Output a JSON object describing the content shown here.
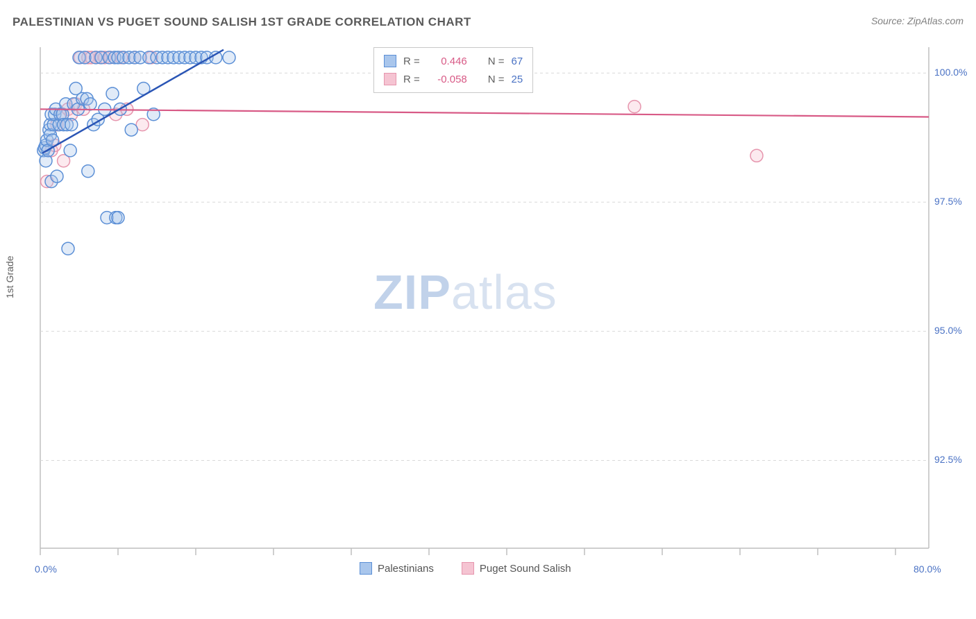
{
  "title": "PALESTINIAN VS PUGET SOUND SALISH 1ST GRADE CORRELATION CHART",
  "source": "Source: ZipAtlas.com",
  "watermark": {
    "front": "ZIP",
    "back": "atlas"
  },
  "ylabel": "1st Grade",
  "chart": {
    "type": "scatter",
    "xlim": [
      0,
      80
    ],
    "ylim": [
      90.8,
      100.5
    ],
    "x_tick_labels": {
      "0": "0.0%",
      "80": "80.0%"
    },
    "x_minor_ticks": [
      0,
      7,
      14,
      21,
      28,
      35,
      42,
      49,
      56,
      63,
      70,
      77
    ],
    "y_ticks": [
      92.5,
      95.0,
      97.5,
      100.0
    ],
    "y_tick_labels": {
      "92.5": "92.5%",
      "95.0": "95.0%",
      "97.5": "97.5%",
      "100.0": "100.0%"
    },
    "grid_color": "#d9d9d9",
    "axis_color": "#bfbfbf",
    "background_color": "#ffffff",
    "marker_radius": 9,
    "marker_stroke_width": 1.5,
    "marker_fill_opacity": 0.35,
    "series_a": {
      "label": "Palestinians",
      "color_stroke": "#5b8fd6",
      "color_fill": "#a9c6ec",
      "r_value": "0.446",
      "n_value": "67",
      "trend": {
        "x1": 0.2,
        "y1": 98.45,
        "x2": 16.5,
        "y2": 100.45,
        "width": 2.5,
        "color": "#2a55b5"
      },
      "points": [
        [
          0.3,
          98.5
        ],
        [
          0.4,
          98.55
        ],
        [
          0.5,
          98.6
        ],
        [
          0.5,
          98.3
        ],
        [
          0.6,
          98.7
        ],
        [
          0.7,
          98.5
        ],
        [
          0.8,
          98.9
        ],
        [
          0.9,
          99.0
        ],
        [
          0.9,
          98.8
        ],
        [
          1.0,
          99.2
        ],
        [
          1.1,
          98.7
        ],
        [
          1.2,
          99.0
        ],
        [
          1.3,
          99.2
        ],
        [
          1.4,
          99.3
        ],
        [
          1.0,
          97.9
        ],
        [
          1.5,
          98.0
        ],
        [
          1.7,
          99.0
        ],
        [
          1.8,
          99.2
        ],
        [
          2.0,
          99.2
        ],
        [
          2.1,
          99.0
        ],
        [
          2.3,
          99.4
        ],
        [
          2.4,
          99.0
        ],
        [
          2.7,
          98.5
        ],
        [
          2.8,
          99.0
        ],
        [
          3.0,
          99.4
        ],
        [
          3.2,
          99.7
        ],
        [
          3.4,
          99.3
        ],
        [
          3.5,
          100.3
        ],
        [
          3.8,
          99.5
        ],
        [
          4.0,
          100.3
        ],
        [
          4.2,
          99.5
        ],
        [
          4.3,
          98.1
        ],
        [
          4.5,
          99.4
        ],
        [
          4.8,
          99.0
        ],
        [
          5.0,
          100.3
        ],
        [
          5.2,
          99.1
        ],
        [
          5.5,
          100.3
        ],
        [
          5.8,
          99.3
        ],
        [
          6.0,
          97.2
        ],
        [
          6.2,
          100.3
        ],
        [
          6.5,
          99.6
        ],
        [
          6.7,
          100.3
        ],
        [
          6.8,
          97.2
        ],
        [
          7.0,
          97.2
        ],
        [
          7.0,
          100.3
        ],
        [
          7.2,
          99.3
        ],
        [
          7.5,
          100.3
        ],
        [
          8.0,
          100.3
        ],
        [
          8.2,
          98.9
        ],
        [
          8.5,
          100.3
        ],
        [
          9.0,
          100.3
        ],
        [
          9.3,
          99.7
        ],
        [
          9.8,
          100.3
        ],
        [
          10.2,
          99.2
        ],
        [
          10.5,
          100.3
        ],
        [
          11.0,
          100.3
        ],
        [
          11.5,
          100.3
        ],
        [
          12.0,
          100.3
        ],
        [
          12.5,
          100.3
        ],
        [
          13.0,
          100.3
        ],
        [
          13.5,
          100.3
        ],
        [
          14.0,
          100.3
        ],
        [
          14.5,
          100.3
        ],
        [
          15.0,
          100.3
        ],
        [
          15.8,
          100.3
        ],
        [
          17.0,
          100.3
        ],
        [
          2.5,
          96.6
        ]
      ]
    },
    "series_b": {
      "label": "Puget Sound Salish",
      "color_stroke": "#e695ad",
      "color_fill": "#f5c4d2",
      "r_value": "-0.058",
      "n_value": "25",
      "trend": {
        "x1": 0,
        "y1": 99.3,
        "x2": 80,
        "y2": 99.15,
        "width": 2.2,
        "color": "#d85a86"
      },
      "points": [
        [
          0.6,
          97.9
        ],
        [
          1.0,
          98.5
        ],
        [
          1.3,
          98.6
        ],
        [
          1.5,
          99.0
        ],
        [
          1.8,
          99.2
        ],
        [
          2.1,
          98.3
        ],
        [
          2.5,
          99.3
        ],
        [
          2.8,
          99.2
        ],
        [
          3.2,
          99.4
        ],
        [
          3.6,
          100.3
        ],
        [
          3.9,
          99.3
        ],
        [
          4.3,
          100.3
        ],
        [
          4.6,
          100.3
        ],
        [
          5.0,
          100.3
        ],
        [
          5.4,
          100.3
        ],
        [
          5.8,
          100.3
        ],
        [
          6.3,
          100.3
        ],
        [
          6.8,
          99.2
        ],
        [
          7.3,
          100.3
        ],
        [
          7.8,
          99.3
        ],
        [
          8.5,
          100.3
        ],
        [
          9.2,
          99.0
        ],
        [
          10.0,
          100.3
        ],
        [
          53.5,
          99.35
        ],
        [
          64.5,
          98.4
        ]
      ]
    }
  },
  "legend_top": {
    "r_label": "R =",
    "n_label": "N =",
    "r_color": "#d85a86",
    "n_color": "#4a72c4",
    "text_color": "#606060"
  },
  "colors": {
    "title": "#5a5a5a",
    "ticks": "#4a72c4"
  }
}
